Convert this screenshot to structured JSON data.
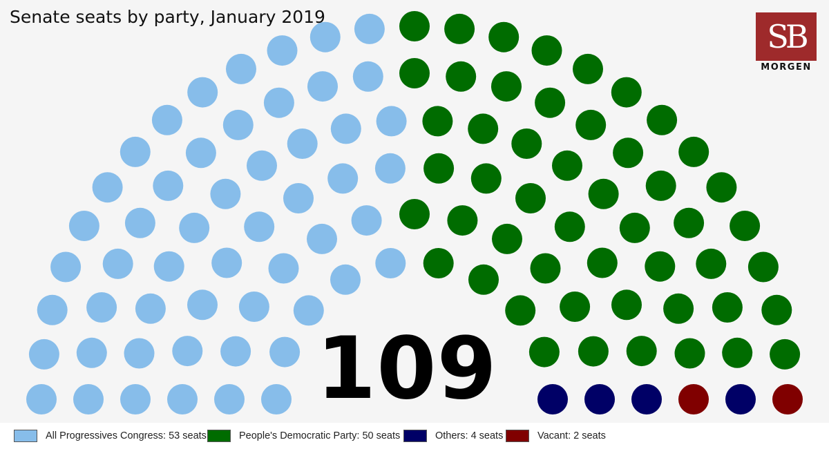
{
  "chart_data": {
    "type": "parliament",
    "title": "Senate seats by party, January 2019",
    "total_label": "109",
    "series": [
      {
        "name": "All Progressives Congress: 53 seats",
        "value": 53,
        "color": "#87bdea"
      },
      {
        "name": "People's Democratic Party: 50 seats",
        "value": 50,
        "color": "#006c00"
      },
      {
        "name": "Others: 4 seats",
        "value": 4,
        "color": "#000066"
      },
      {
        "name": "Vacant: 2 seats",
        "value": 2,
        "color": "#800000"
      }
    ],
    "legend_position": "bottom"
  },
  "logo": {
    "letters": "SB",
    "word": "MORGEN"
  }
}
